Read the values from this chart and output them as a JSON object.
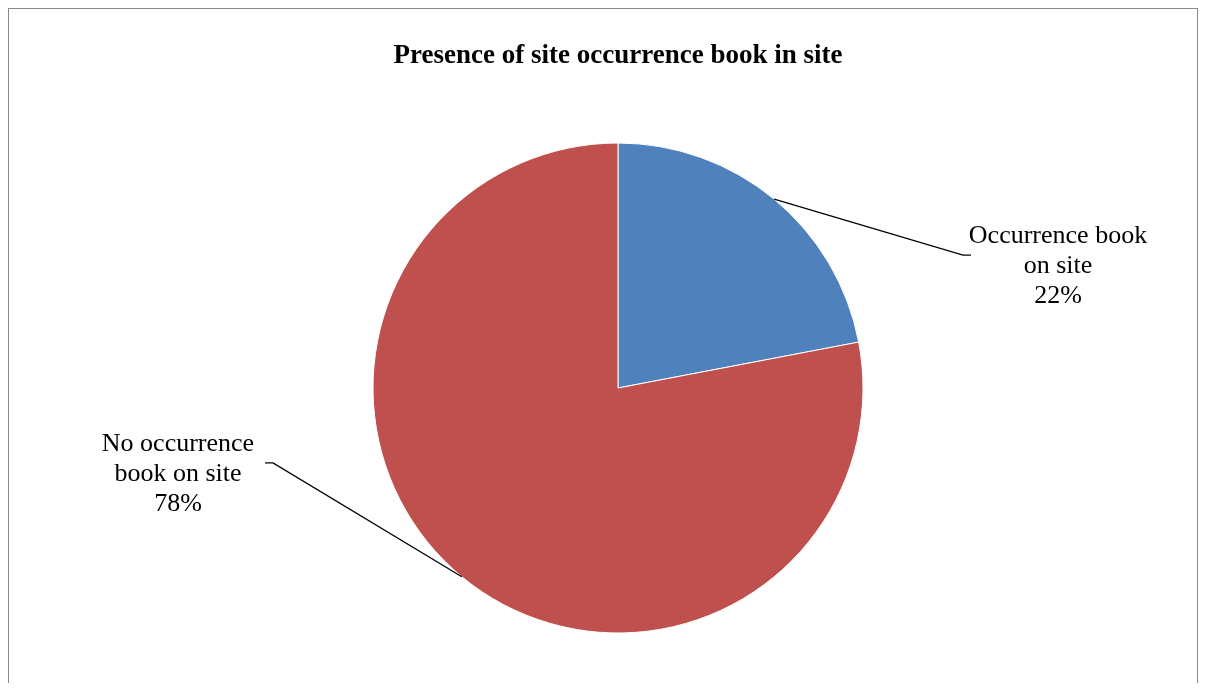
{
  "chart_data": {
    "type": "pie",
    "title": "Presence of site occurrence book in site",
    "categories": [
      "Occurrence book on site",
      "No occurrence book on site"
    ],
    "values": [
      22,
      78
    ],
    "colors": [
      "#4f81bd",
      "#c0504d"
    ],
    "value_labels": [
      "22%",
      "78%"
    ]
  }
}
